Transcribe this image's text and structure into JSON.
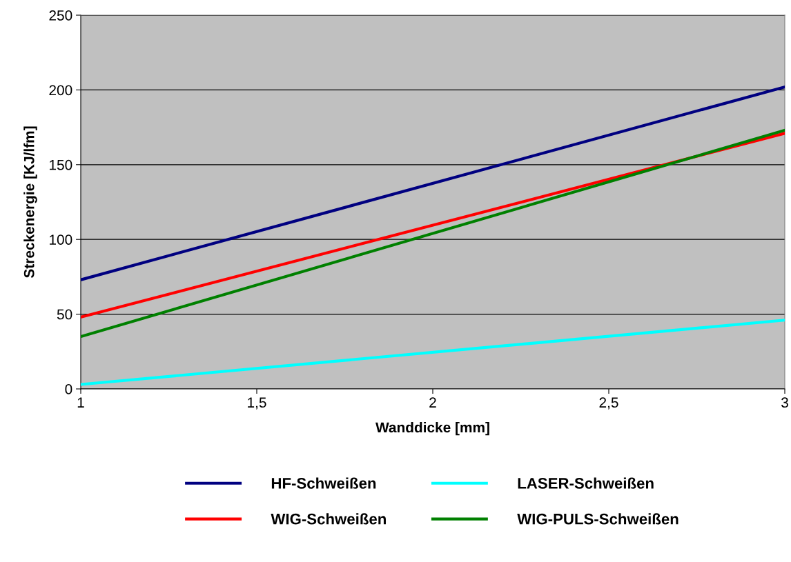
{
  "chart_data": {
    "type": "line",
    "xlabel": "Wanddicke [mm]",
    "ylabel": "Streckenergie [KJ/lfm]",
    "x": [
      1,
      3
    ],
    "series": [
      {
        "name": "HF-Schweißen",
        "color": "#000080",
        "values": [
          73,
          202
        ]
      },
      {
        "name": "WIG-Schweißen",
        "color": "#ff0000",
        "values": [
          48,
          171
        ]
      },
      {
        "name": "LASER-Schweißen",
        "color": "#00ffff",
        "values": [
          3,
          46
        ]
      },
      {
        "name": "WIG-PULS-Schweißen",
        "color": "#008000",
        "values": [
          35,
          173
        ]
      }
    ],
    "xlim": [
      1,
      3
    ],
    "xticks": [
      1,
      {
        "value": 1.5,
        "label": "1,5"
      },
      2,
      {
        "value": 2.5,
        "label": "2,5"
      },
      3
    ],
    "ylim": [
      0,
      250
    ],
    "yticks": [
      0,
      50,
      100,
      150,
      200,
      250
    ],
    "grid": "y",
    "legend": "bottom",
    "marker": "none",
    "line_style": "solid"
  }
}
